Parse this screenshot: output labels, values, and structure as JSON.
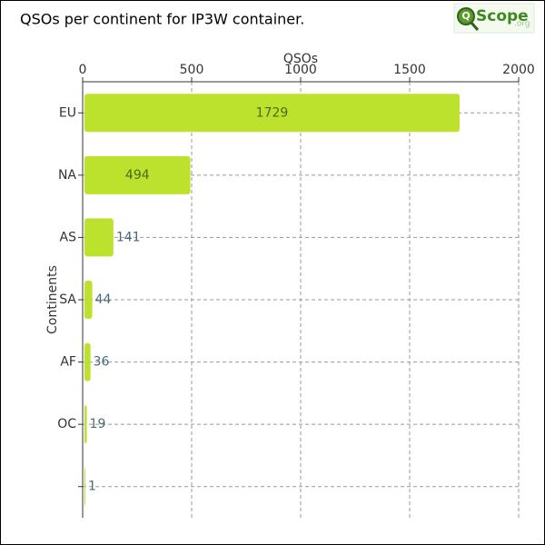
{
  "logo": {
    "mark": "Q",
    "name": "Scope",
    "domain": ".org"
  },
  "chart_data": {
    "type": "hbar",
    "title": "QSOs per continent for IP3W container.",
    "x_label": "QSOs",
    "y_label": "Continents",
    "categories": [
      "EU",
      "NA",
      "AS",
      "SA",
      "AF",
      "OC",
      null
    ],
    "values": [
      1729,
      494,
      141,
      44,
      36,
      19,
      1
    ],
    "color": "#bde22e",
    "xlim": [
      0,
      2000
    ],
    "xticks": [
      0,
      500,
      1000,
      1500,
      2000
    ],
    "grid": true
  }
}
